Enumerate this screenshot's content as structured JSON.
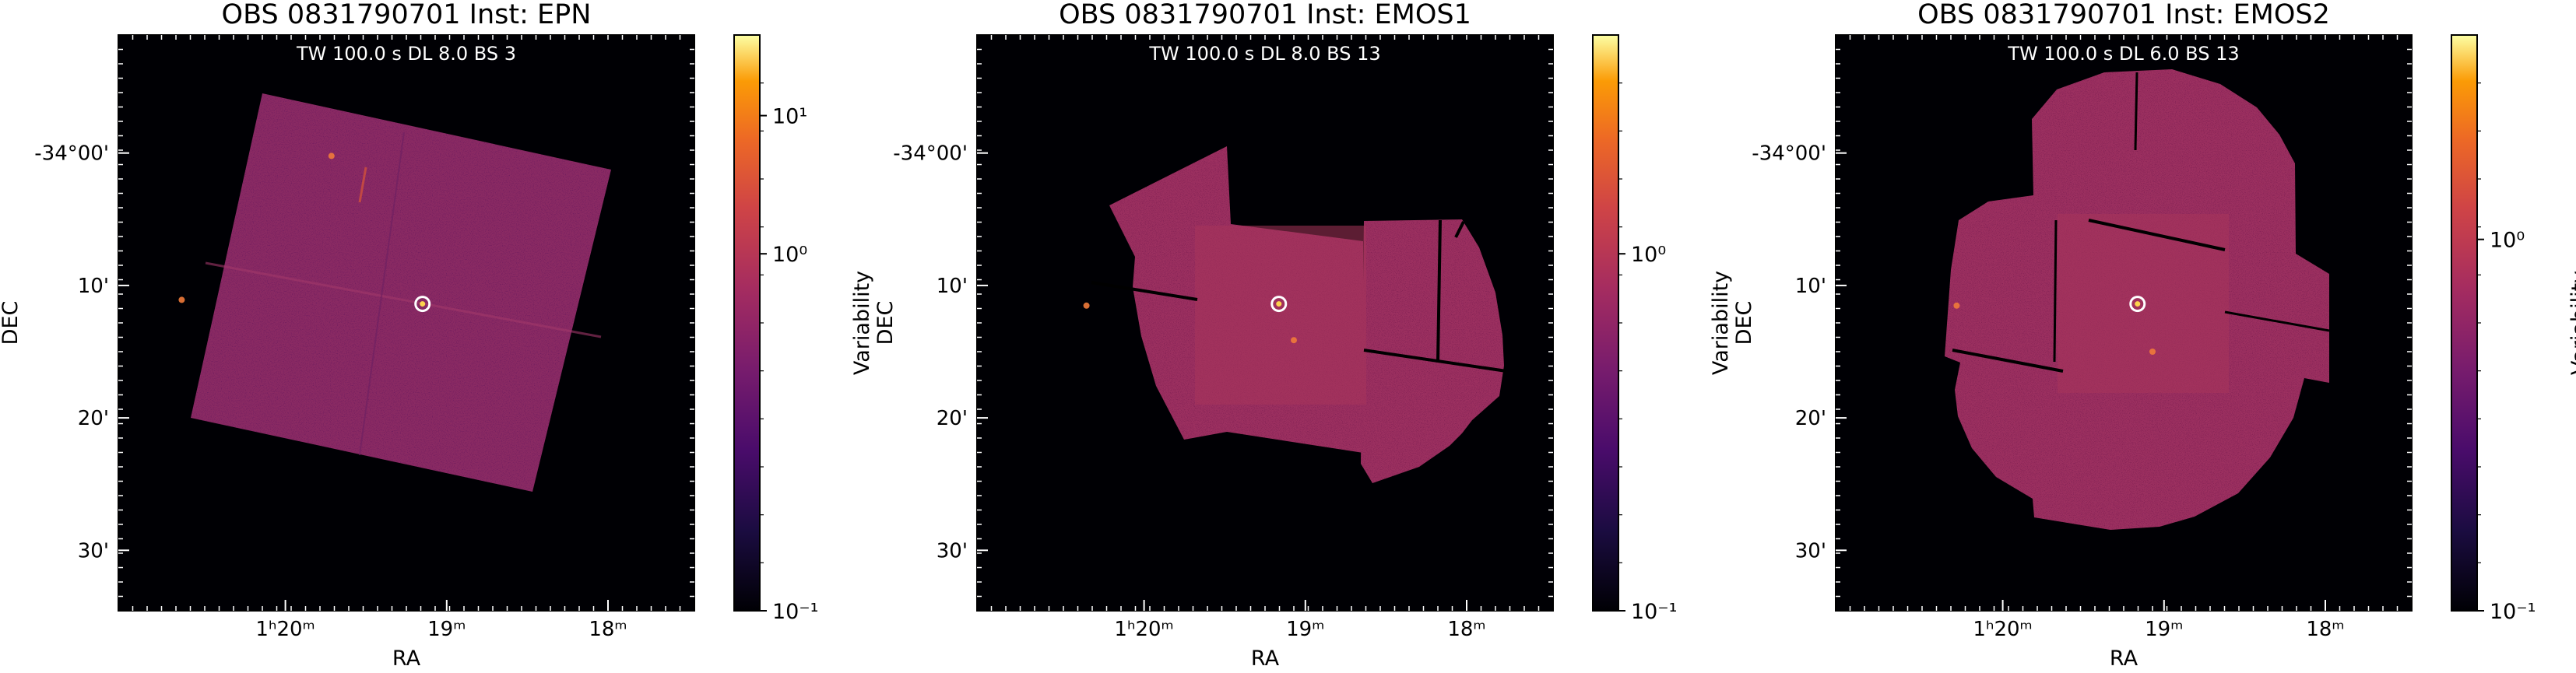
{
  "chart_data": [
    {
      "type": "heatmap",
      "title": "OBS 0831790701    Inst: EPN",
      "annotation": "TW 100.0 s     DL 8.0    BS 3",
      "xlabel": "RA",
      "ylabel": "DEC",
      "x_ticks": [
        "1ʰ20ᵐ",
        "19ᵐ",
        "18ᵐ"
      ],
      "y_ticks": [
        "-34°00'",
        "10'",
        "20'",
        "30'"
      ],
      "colorbar": {
        "label": "Variability",
        "label2": "DEC",
        "scale": "log",
        "cmap": "inferno",
        "ticks": [
          "10⁻¹",
          "10⁰",
          "10¹"
        ],
        "range": [
          0.1,
          40
        ]
      },
      "detector_shape": "rotated-square",
      "source_marker": "white circle"
    },
    {
      "type": "heatmap",
      "title": "OBS 0831790701    Inst: EMOS1",
      "annotation": "TW 100.0 s     DL 8.0    BS 13",
      "xlabel": "RA",
      "ylabel": "",
      "x_ticks": [
        "1ʰ20ᵐ",
        "19ᵐ",
        "18ᵐ"
      ],
      "y_ticks": [
        "-34°00'",
        "10'",
        "20'",
        "30'"
      ],
      "colorbar": {
        "label": "Variability",
        "label2": "DEC",
        "scale": "log",
        "cmap": "inferno",
        "ticks": [
          "10⁻¹",
          "10⁰"
        ],
        "range": [
          0.1,
          5
        ]
      },
      "detector_shape": "mos-ccd-mosaic",
      "source_marker": "white circle"
    },
    {
      "type": "heatmap",
      "title": "OBS 0831790701    Inst: EMOS2",
      "annotation": "TW 100.0 s     DL 6.0    BS 13",
      "xlabel": "RA",
      "ylabel": "",
      "x_ticks": [
        "1ʰ20ᵐ",
        "19ᵐ",
        "18ᵐ"
      ],
      "y_ticks": [
        "-34°00'",
        "10'",
        "20'",
        "30'"
      ],
      "colorbar": {
        "label": "Variability",
        "label2": "",
        "scale": "log",
        "cmap": "inferno",
        "ticks": [
          "10⁻¹",
          "10⁰"
        ],
        "range": [
          0.1,
          4
        ]
      },
      "detector_shape": "mos-circle-mosaic",
      "source_marker": "white circle"
    }
  ]
}
